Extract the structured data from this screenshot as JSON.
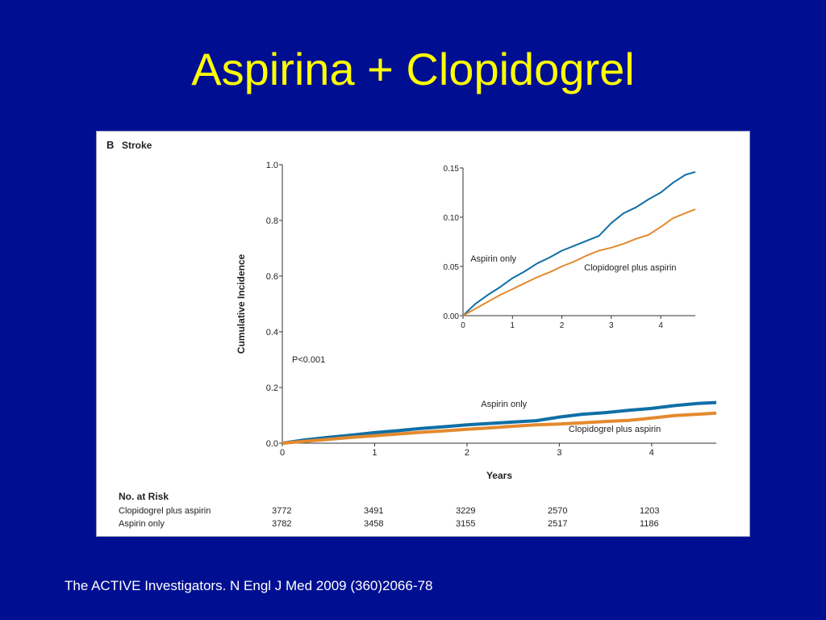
{
  "slide": {
    "title": "Aspirina + Clopidogrel",
    "citation": "The ACTIVE Investigators. N Engl J Med 2009 (360)2066-78"
  },
  "figure": {
    "panel_letter": "B",
    "panel_title": "Stroke",
    "p_value": "P<0.001"
  },
  "colors": {
    "background": "#000f92",
    "title": "#ffff00",
    "aspirin_only": "#0f6fa6",
    "clopidogrel_plus_aspirin": "#e38a2e"
  },
  "chart_data": [
    {
      "type": "line",
      "role": "main",
      "xlabel": "Years",
      "ylabel": "Cumulative Incidence",
      "xlim": [
        0,
        4.7
      ],
      "ylim": [
        0,
        1.0
      ],
      "x_ticks": [
        "0",
        "1",
        "2",
        "3",
        "4"
      ],
      "y_ticks": [
        "0.0",
        "0.2",
        "0.4",
        "0.6",
        "0.8",
        "1.0"
      ],
      "grid": false,
      "series": [
        {
          "name": "Aspirin only",
          "color_key": "aspirin_only",
          "x": [
            0,
            0.25,
            0.5,
            0.75,
            1.0,
            1.25,
            1.5,
            1.75,
            2.0,
            2.25,
            2.5,
            2.75,
            3.0,
            3.25,
            3.5,
            3.75,
            4.0,
            4.25,
            4.5,
            4.7
          ],
          "y": [
            0,
            0.012,
            0.021,
            0.029,
            0.038,
            0.045,
            0.053,
            0.059,
            0.066,
            0.071,
            0.076,
            0.081,
            0.094,
            0.104,
            0.11,
            0.118,
            0.125,
            0.135,
            0.143,
            0.146
          ]
        },
        {
          "name": "Clopidogrel plus aspirin",
          "color_key": "clopidogrel_plus_aspirin",
          "x": [
            0,
            0.25,
            0.5,
            0.75,
            1.0,
            1.25,
            1.5,
            1.75,
            2.0,
            2.25,
            2.5,
            2.75,
            3.0,
            3.25,
            3.5,
            3.75,
            4.0,
            4.25,
            4.5,
            4.7
          ],
          "y": [
            0,
            0.007,
            0.014,
            0.021,
            0.027,
            0.033,
            0.039,
            0.044,
            0.05,
            0.055,
            0.061,
            0.066,
            0.069,
            0.073,
            0.078,
            0.082,
            0.09,
            0.099,
            0.104,
            0.108
          ]
        }
      ],
      "annotations": [
        {
          "text": "Aspirin only",
          "x": 2.4,
          "y": 0.13
        },
        {
          "text": "Clopidogrel plus aspirin",
          "x": 3.6,
          "y": 0.04
        }
      ]
    },
    {
      "type": "line",
      "role": "inset",
      "xlim": [
        0,
        4.7
      ],
      "ylim": [
        0,
        0.15
      ],
      "x_ticks": [
        "0",
        "1",
        "2",
        "3",
        "4"
      ],
      "y_ticks": [
        "0.00",
        "0.05",
        "0.10",
        "0.15"
      ],
      "grid": false,
      "series": [
        {
          "name": "Aspirin only",
          "color_key": "aspirin_only",
          "x": [
            0,
            0.25,
            0.5,
            0.75,
            1.0,
            1.25,
            1.5,
            1.75,
            2.0,
            2.25,
            2.5,
            2.75,
            3.0,
            3.25,
            3.5,
            3.75,
            4.0,
            4.25,
            4.5,
            4.7
          ],
          "y": [
            0,
            0.012,
            0.021,
            0.029,
            0.038,
            0.045,
            0.053,
            0.059,
            0.066,
            0.071,
            0.076,
            0.081,
            0.094,
            0.104,
            0.11,
            0.118,
            0.125,
            0.135,
            0.143,
            0.146
          ]
        },
        {
          "name": "Clopidogrel plus aspirin",
          "color_key": "clopidogrel_plus_aspirin",
          "x": [
            0,
            0.25,
            0.5,
            0.75,
            1.0,
            1.25,
            1.5,
            1.75,
            2.0,
            2.25,
            2.5,
            2.75,
            3.0,
            3.25,
            3.5,
            3.75,
            4.0,
            4.25,
            4.5,
            4.7
          ],
          "y": [
            0,
            0.007,
            0.014,
            0.021,
            0.027,
            0.033,
            0.039,
            0.044,
            0.05,
            0.055,
            0.061,
            0.066,
            0.069,
            0.073,
            0.078,
            0.082,
            0.09,
            0.099,
            0.104,
            0.108
          ]
        }
      ],
      "annotations": [
        {
          "text": "Aspirin only",
          "x": 0.15,
          "y": 0.055
        },
        {
          "text": "Clopidogrel plus aspirin",
          "x": 2.45,
          "y": 0.046
        }
      ]
    }
  ],
  "risk_table": {
    "header": "No. at Risk",
    "rows": [
      {
        "label": "Clopidogrel plus aspirin",
        "values": [
          "3772",
          "3491",
          "3229",
          "2570",
          "1203"
        ]
      },
      {
        "label": "Aspirin only",
        "values": [
          "3782",
          "3458",
          "3155",
          "2517",
          "1186"
        ]
      }
    ]
  }
}
